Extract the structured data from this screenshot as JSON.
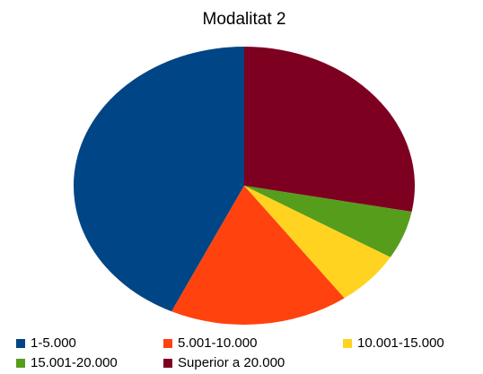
{
  "chart_data": {
    "type": "pie",
    "title": "Modalitat 2",
    "categories": [
      "1-5.000",
      "5.001-10.000",
      "10.001-15.000",
      "15.001-20.000",
      "Superior a 20.000"
    ],
    "values": [
      43,
      17,
      6.4,
      5.6,
      28
    ],
    "colors": [
      "#004586",
      "#ff420e",
      "#ffd320",
      "#579d1c",
      "#7e0021"
    ],
    "legend": "bottom"
  }
}
